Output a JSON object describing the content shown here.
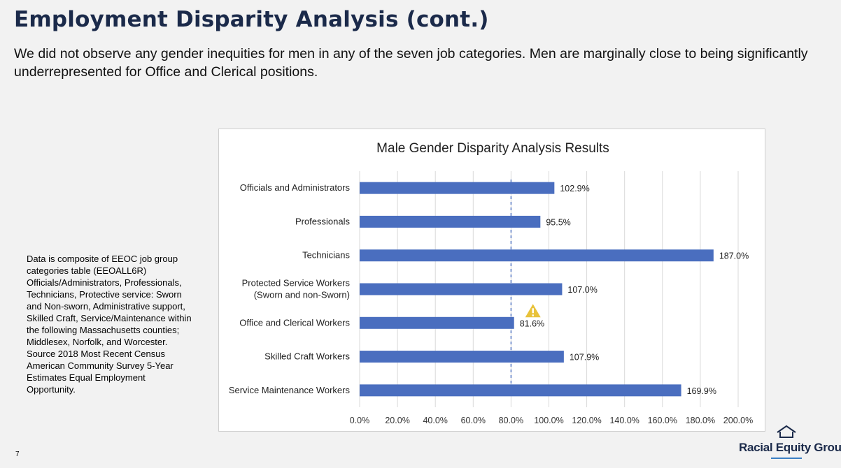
{
  "slide": {
    "title": "Employment Disparity Analysis (cont.)",
    "subtitle": "We did not observe any gender inequities for men in any of the seven job categories. Men are marginally close to being significantly underrepresented for Office and Clerical positions.",
    "note": "Data is composite of EEOC job group categories table (EEOALL6R) Officials/Administrators, Professionals, Technicians, Protective service: Sworn and Non-sworn, Administrative support, Skilled Craft, Service/Maintenance within the following Massachusetts counties; Middlesex, Norfolk, and Worcester. Source 2018 Most Recent Census American Community Survey 5-Year Estimates Equal Employment Opportunity.",
    "page_number": "7"
  },
  "logo": {
    "text": "Racial Equity Group",
    "icon": "house-icon"
  },
  "colors": {
    "bar": "#4a6ebf",
    "title": "#1b2a4a",
    "warning": "#e8c23a",
    "reference_line": "#4a6ebf",
    "grid": "#d9d9d9"
  },
  "chart_data": {
    "type": "bar",
    "orientation": "horizontal",
    "title": "Male Gender Disparity Analysis Results",
    "categories": [
      [
        "Officials and Administrators"
      ],
      [
        "Professionals"
      ],
      [
        "Technicians"
      ],
      [
        "Protected Service Workers",
        "(Sworn and non-Sworn)"
      ],
      [
        "Office and Clerical Workers"
      ],
      [
        "Skilled Craft Workers"
      ],
      [
        "Service Maintenance Workers"
      ]
    ],
    "values": [
      102.9,
      95.5,
      187.0,
      107.0,
      81.6,
      107.9,
      169.9
    ],
    "value_labels": [
      "102.9%",
      "95.5%",
      "187.0%",
      "107.0%",
      "81.6%",
      "107.9%",
      "169.9%"
    ],
    "xlim": [
      0,
      200
    ],
    "xticks": [
      0,
      20,
      40,
      60,
      80,
      100,
      120,
      140,
      160,
      180,
      200
    ],
    "xtick_labels": [
      "0.0%",
      "20.0%",
      "40.0%",
      "60.0%",
      "80.0%",
      "100.0%",
      "120.0%",
      "140.0%",
      "160.0%",
      "180.0%",
      "200.0%"
    ],
    "reference_line": 80,
    "warning_category_index": 4,
    "grid": true,
    "xlabel": "",
    "ylabel": ""
  }
}
